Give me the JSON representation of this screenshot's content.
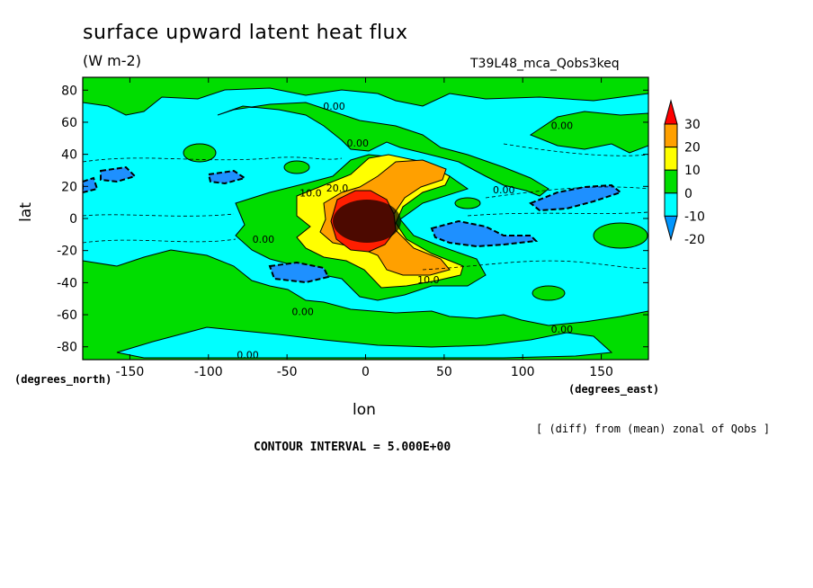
{
  "chart_data": {
    "type": "heatmap",
    "title": "surface upward latent heat flux",
    "units": "(W m-2)",
    "run_id": "T39L48_mca_Qobs3keq",
    "xlabel": "lon",
    "ylabel": "lat",
    "x_unit_label": "(degrees_east)",
    "y_unit_label": "(degrees_north)",
    "footnote": "[ (diff) from (mean) zonal of Qobs ]",
    "contour_interval_text": "CONTOUR INTERVAL = 5.000E+00",
    "xlim": [
      -180,
      180
    ],
    "ylim": [
      -88,
      88
    ],
    "x_ticks": [
      -150,
      -100,
      -50,
      0,
      50,
      100,
      150
    ],
    "x_tick_labels": [
      "-150",
      "-100",
      "-50",
      "0",
      "50",
      "100",
      "150"
    ],
    "y_ticks": [
      80,
      60,
      40,
      20,
      0,
      -20,
      -40,
      -60,
      -80
    ],
    "y_tick_labels": [
      "80",
      "60",
      "40",
      "20",
      "0",
      "-20",
      "-40",
      "-60",
      "-80"
    ],
    "contour_labels": [
      {
        "text": "0.00",
        "lon": -20,
        "lat": 70
      },
      {
        "text": "0.00",
        "lon": -5,
        "lat": 47
      },
      {
        "text": "0.00",
        "lon": 125,
        "lat": 58
      },
      {
        "text": "0.00",
        "lon": 88,
        "lat": 18
      },
      {
        "text": "0.00",
        "lon": -65,
        "lat": -13
      },
      {
        "text": "0.00",
        "lon": -40,
        "lat": -58
      },
      {
        "text": "0.00",
        "lon": 125,
        "lat": -69
      },
      {
        "text": "0.00",
        "lon": -75,
        "lat": -85
      },
      {
        "text": "10.0",
        "lon": -35,
        "lat": 16
      },
      {
        "text": "20.0",
        "lon": -18,
        "lat": 19
      },
      {
        "text": "10.0",
        "lon": 40,
        "lat": -38
      }
    ],
    "colorbar": {
      "levels": [
        -20,
        -10,
        0,
        10,
        20,
        30
      ],
      "labels": [
        "30",
        "20",
        "10",
        "0",
        "-10",
        "-20"
      ],
      "colors": [
        "#0096ff",
        "#00ffff",
        "#00dd00",
        "#ffff00",
        "#ffa000",
        "#ff0000"
      ]
    },
    "fill_colors": {
      "lt_m10": "#1e90ff",
      "m10_0": "#00ffff",
      "0_10": "#00dd00",
      "10_20": "#ffff00",
      "20_30": "#ffa000",
      "gt_30": "#ff1e00"
    }
  }
}
